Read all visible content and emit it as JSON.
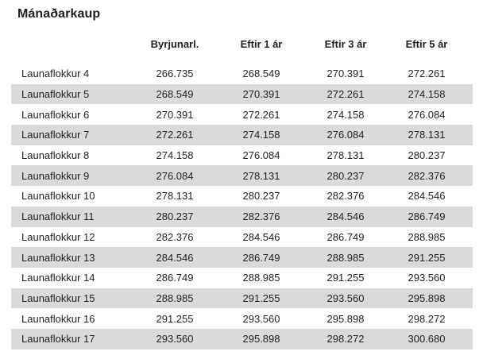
{
  "title": "Mánaðarkaup",
  "table": {
    "columns": [
      "Byrjunarl.",
      "Eftir 1 ár",
      "Eftir 3 ár",
      "Eftir 5 ár"
    ],
    "rows": [
      {
        "label": "Launaflokkur 4",
        "values": [
          "266.735",
          "268.549",
          "270.391",
          "272.261"
        ]
      },
      {
        "label": "Launaflokkur 5",
        "values": [
          "268.549",
          "270.391",
          "272.261",
          "274.158"
        ]
      },
      {
        "label": "Launaflokkur 6",
        "values": [
          "270.391",
          "272.261",
          "274.158",
          "276.084"
        ]
      },
      {
        "label": "Launaflokkur 7",
        "values": [
          "272.261",
          "274.158",
          "276.084",
          "278.131"
        ]
      },
      {
        "label": "Launaflokkur 8",
        "values": [
          "274.158",
          "276.084",
          "278.131",
          "280.237"
        ]
      },
      {
        "label": "Launaflokkur 9",
        "values": [
          "276.084",
          "278.131",
          "280.237",
          "282.376"
        ]
      },
      {
        "label": "Launaflokkur 10",
        "values": [
          "278.131",
          "280.237",
          "282.376",
          "284.546"
        ]
      },
      {
        "label": "Launaflokkur 11",
        "values": [
          "280.237",
          "282.376",
          "284.546",
          "286.749"
        ]
      },
      {
        "label": "Launaflokkur 12",
        "values": [
          "282.376",
          "284.546",
          "286.749",
          "288.985"
        ]
      },
      {
        "label": "Launaflokkur 13",
        "values": [
          "284.546",
          "286.749",
          "288.985",
          "291.255"
        ]
      },
      {
        "label": "Launaflokkur 14",
        "values": [
          "286.749",
          "288.985",
          "291.255",
          "293.560"
        ]
      },
      {
        "label": "Launaflokkur 15",
        "values": [
          "288.985",
          "291.255",
          "293.560",
          "295.898"
        ]
      },
      {
        "label": "Launaflokkur 16",
        "values": [
          "291.255",
          "293.560",
          "295.898",
          "298.272"
        ]
      },
      {
        "label": "Launaflokkur 17",
        "values": [
          "293.560",
          "295.898",
          "298.272",
          "300.680"
        ]
      }
    ]
  },
  "colors": {
    "stripe": "#dadada",
    "text": "#231f20",
    "background": "#ffffff"
  }
}
